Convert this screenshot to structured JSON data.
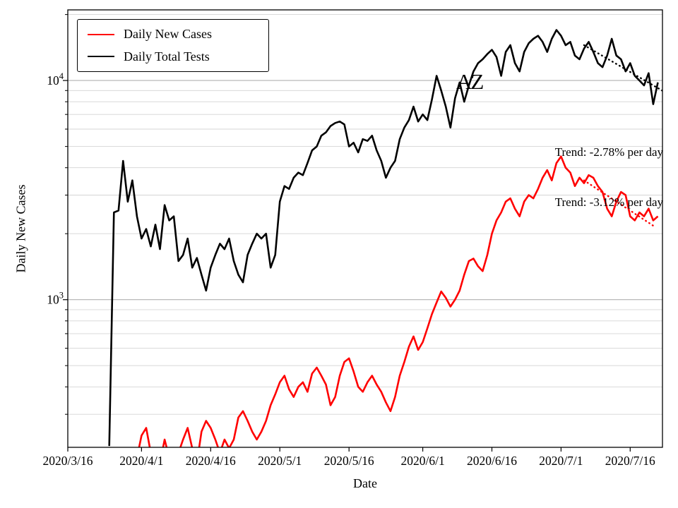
{
  "figure": {
    "background": "#ffffff",
    "ylabel": "Daily New Cases",
    "xlabel": "Date",
    "legend": [
      {
        "label": "Daily New Cases",
        "color": "#ff0000"
      },
      {
        "label": "Daily Total Tests",
        "color": "#000000"
      }
    ],
    "annotations": [
      {
        "text": "AZ"
      },
      {
        "text": "Trend: -2.78% per day"
      },
      {
        "text": "Trend: -3.12% per day"
      }
    ]
  },
  "chart_data": {
    "type": "line",
    "title": "",
    "xlabel": "Date",
    "ylabel": "Daily New Cases",
    "yscale": "log",
    "grid": "horizontal-major-and-minor",
    "legend_position": "upper left",
    "ylim": [
      212,
      21000
    ],
    "x_range": [
      0,
      129
    ],
    "x_start_date": "2020/3/16",
    "x_tick_labels": [
      "2020/3/16",
      "2020/4/1",
      "2020/4/16",
      "2020/5/1",
      "2020/5/16",
      "2020/6/1",
      "2020/6/16",
      "2020/7/1",
      "2020/7/16"
    ],
    "x_tick_days": [
      0,
      16,
      31,
      46,
      61,
      77,
      92,
      107,
      122
    ],
    "y_ticks": [
      {
        "base": "10",
        "exp": "3",
        "value": 1000
      },
      {
        "base": "10",
        "exp": "4",
        "value": 10000
      }
    ],
    "series": [
      {
        "name": "Daily Total Tests",
        "color": "#000000",
        "start_day": 9,
        "start_date": "2020/3/25",
        "values": [
          215,
          2500,
          2550,
          4300,
          2800,
          3500,
          2400,
          1900,
          2100,
          1750,
          2200,
          1700,
          2700,
          2300,
          2400,
          1500,
          1600,
          1900,
          1400,
          1550,
          1300,
          1100,
          1400,
          1600,
          1800,
          1700,
          1900,
          1500,
          1300,
          1200,
          1600,
          1800,
          2000,
          1900,
          2000,
          1400,
          1600,
          2800,
          3300,
          3200,
          3600,
          3800,
          3700,
          4200,
          4800,
          5000,
          5600,
          5800,
          6200,
          6400,
          6500,
          6300,
          5000,
          5200,
          4700,
          5400,
          5300,
          5600,
          4800,
          4300,
          3600,
          4000,
          4300,
          5400,
          6100,
          6600,
          7600,
          6500,
          7000,
          6600,
          8200,
          10500,
          9000,
          7600,
          6100,
          8300,
          9800,
          8000,
          9500,
          11000,
          12000,
          12500,
          13200,
          13800,
          12800,
          10500,
          13500,
          14500,
          12000,
          11000,
          13500,
          14800,
          15500,
          16000,
          15000,
          13500,
          15500,
          17000,
          16000,
          14500,
          15000,
          13000,
          12500,
          14000,
          15000,
          13500,
          12000,
          11500,
          13000,
          15500,
          13000,
          12500,
          11000,
          12000,
          10500,
          10000,
          9500,
          10800,
          7800,
          9800
        ]
      },
      {
        "name": "Daily New Cases",
        "color": "#ff0000",
        "start_day": 15,
        "start_date": "2020/3/31",
        "values": [
          190,
          240,
          260,
          200,
          190,
          180,
          230,
          190,
          180,
          200,
          230,
          260,
          210,
          180,
          250,
          280,
          260,
          230,
          200,
          230,
          210,
          230,
          290,
          310,
          280,
          250,
          230,
          250,
          280,
          330,
          370,
          420,
          450,
          390,
          360,
          400,
          420,
          380,
          460,
          490,
          450,
          410,
          330,
          360,
          450,
          520,
          540,
          470,
          400,
          380,
          420,
          450,
          410,
          380,
          340,
          310,
          360,
          450,
          520,
          610,
          680,
          590,
          640,
          740,
          860,
          970,
          1090,
          1020,
          930,
          1000,
          1100,
          1300,
          1500,
          1540,
          1420,
          1350,
          1600,
          2000,
          2300,
          2500,
          2800,
          2900,
          2600,
          2400,
          2800,
          3000,
          2900,
          3200,
          3600,
          3900,
          3500,
          4200,
          4500,
          4000,
          3800,
          3300,
          3600,
          3400,
          3700,
          3600,
          3300,
          3100,
          2600,
          2400,
          2800,
          3100,
          3000,
          2400,
          2300,
          2500,
          2400,
          2600,
          2300,
          2400
        ]
      }
    ],
    "trend_lines": [
      {
        "series": "Daily Total Tests",
        "color": "#000000",
        "rate_percent_per_day": -2.78,
        "start_day": 112,
        "start_value": 14500,
        "end_day": 129
      },
      {
        "series": "Daily New Cases",
        "color": "#ff0000",
        "rate_percent_per_day": -3.12,
        "start_day": 112,
        "start_value": 3500,
        "end_day": 127
      }
    ]
  }
}
